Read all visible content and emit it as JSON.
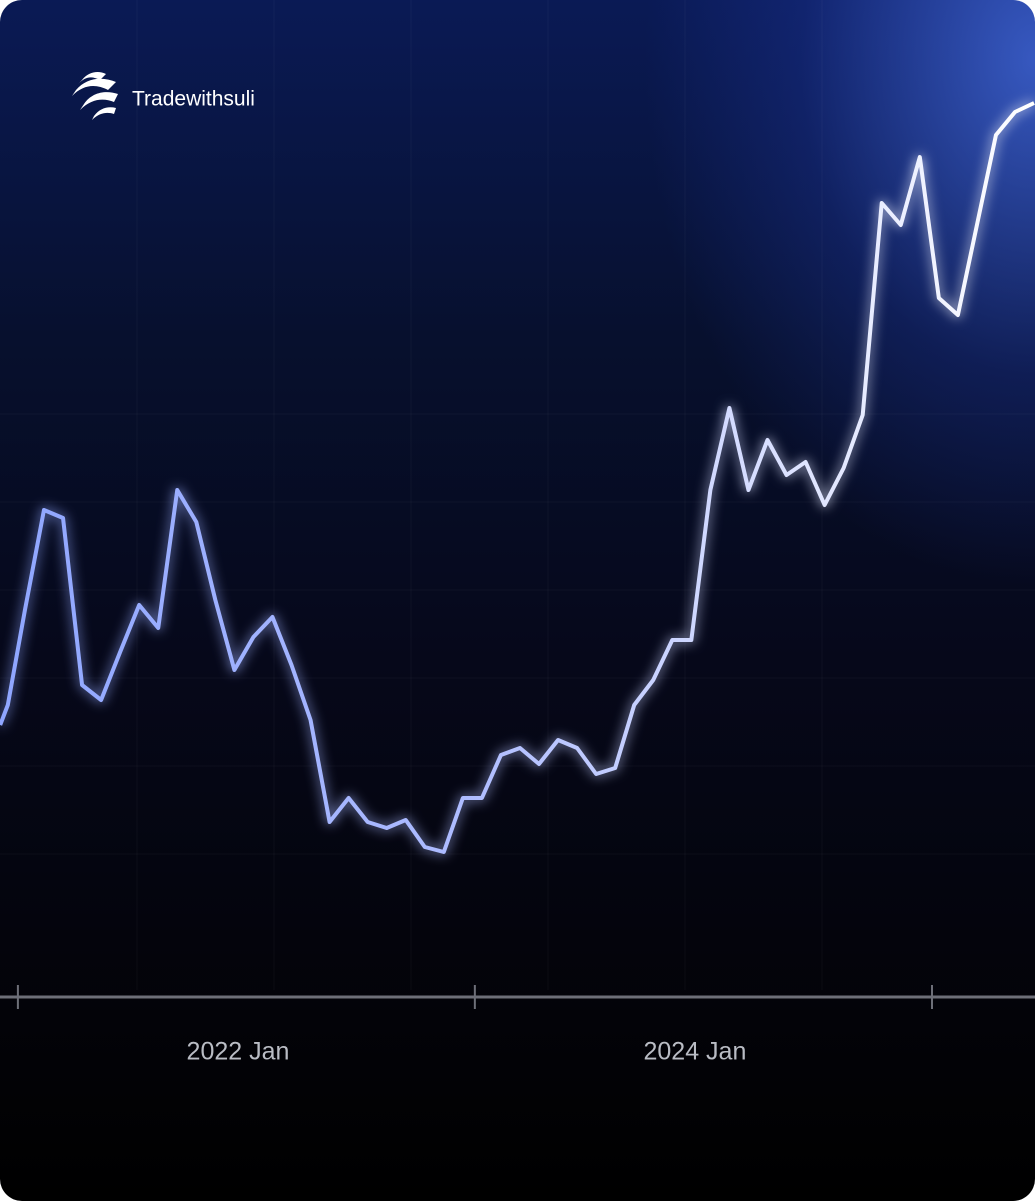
{
  "brand": "Tradewithsuli",
  "chart_data": {
    "type": "line",
    "x": [
      -1.3,
      -0.9,
      0,
      1,
      2,
      3,
      4,
      5,
      6,
      7,
      8,
      9,
      10,
      11,
      12,
      13,
      14,
      15,
      16,
      17,
      18,
      19,
      20,
      21,
      22,
      23,
      24,
      25,
      26,
      27,
      28,
      29,
      30,
      31,
      32,
      33,
      34,
      35,
      36,
      37,
      38,
      39,
      40,
      41,
      42,
      43,
      44,
      45,
      46,
      47,
      48,
      49,
      50,
      51,
      52,
      53
    ],
    "series": [
      {
        "color": "#ffffff",
        "values": [
          27.5,
          29.5,
          39,
          49,
          48.2,
          31.5,
          30,
          34.8,
          39.5,
          37.2,
          51,
          47.8,
          40,
          33,
          36.3,
          38.3,
          33.5,
          28,
          17.8,
          20.2,
          17.8,
          17.2,
          18,
          15.3,
          14.8,
          20.2,
          20.2,
          24.5,
          25.2,
          23.6,
          26,
          25.2,
          22.6,
          23.2,
          29.5,
          32,
          36,
          36,
          51,
          59.2,
          51,
          56,
          52.5,
          53.8,
          49.5,
          53.2,
          58.5,
          79.7,
          77.5,
          84.3,
          70.2,
          68.5,
          77.5,
          86.5,
          88.8,
          89.7
        ]
      }
    ],
    "xlim": [
      -1.31,
      53.05
    ],
    "ylim": [
      0,
      100
    ],
    "xticks": [
      {
        "value": 11.19,
        "label": "2022 Jan"
      },
      {
        "value": 35.19,
        "label": "2024 Jan"
      }
    ],
    "xminorticks": [
      -0.37,
      23.63,
      47.64
    ]
  }
}
